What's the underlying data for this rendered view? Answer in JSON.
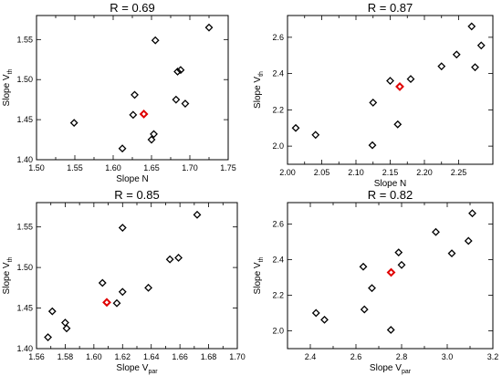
{
  "chart_data": [
    {
      "type": "scatter",
      "title": "R = 0.69",
      "xlabel": "Slope N",
      "ylabel": "Slope V",
      "ylabel_sub": "th",
      "xlim": [
        1.5,
        1.75
      ],
      "ylim": [
        1.4,
        1.58
      ],
      "xticks": [
        "1.50",
        "1.55",
        "1.60",
        "1.65",
        "1.70",
        "1.75"
      ],
      "yticks": [
        "1.40",
        "1.45",
        "1.50",
        "1.55"
      ],
      "points": [
        [
          1.549,
          1.446
        ],
        [
          1.612,
          1.414
        ],
        [
          1.626,
          1.456
        ],
        [
          1.628,
          1.481
        ],
        [
          1.65,
          1.425
        ],
        [
          1.653,
          1.432
        ],
        [
          1.655,
          1.549
        ],
        [
          1.682,
          1.475
        ],
        [
          1.684,
          1.51
        ],
        [
          1.688,
          1.512
        ],
        [
          1.694,
          1.47
        ],
        [
          1.725,
          1.565
        ]
      ],
      "highlight": [
        1.64,
        1.457
      ]
    },
    {
      "type": "scatter",
      "title": "R = 0.87",
      "xlabel": "Slope N",
      "ylabel": "Slope V",
      "ylabel_sub": "th",
      "xlim": [
        2.0,
        2.3
      ],
      "ylim": [
        1.9,
        2.72
      ],
      "xticks": [
        "2.00",
        "2.05",
        "2.10",
        "2.15",
        "2.20",
        "2.25"
      ],
      "yticks": [
        "2.0",
        "2.2",
        "2.4",
        "2.6"
      ],
      "points": [
        [
          2.012,
          2.1
        ],
        [
          2.041,
          2.062
        ],
        [
          2.124,
          2.005
        ],
        [
          2.125,
          2.24
        ],
        [
          2.15,
          2.36
        ],
        [
          2.161,
          2.12
        ],
        [
          2.18,
          2.37
        ],
        [
          2.225,
          2.44
        ],
        [
          2.247,
          2.505
        ],
        [
          2.269,
          2.66
        ],
        [
          2.274,
          2.435
        ],
        [
          2.283,
          2.555
        ]
      ],
      "highlight": [
        2.164,
        2.328
      ]
    },
    {
      "type": "scatter",
      "title": "R = 0.85",
      "xlabel": "Slope V",
      "xlabel_sub": "par",
      "ylabel": "Slope V",
      "ylabel_sub": "th",
      "xlim": [
        1.56,
        1.7
      ],
      "ylim": [
        1.4,
        1.58
      ],
      "xticks": [
        "1.56",
        "1.58",
        "1.60",
        "1.62",
        "1.64",
        "1.66",
        "1.68",
        "1.70"
      ],
      "yticks": [
        "1.40",
        "1.45",
        "1.50",
        "1.55"
      ],
      "points": [
        [
          1.568,
          1.414
        ],
        [
          1.571,
          1.446
        ],
        [
          1.58,
          1.432
        ],
        [
          1.581,
          1.425
        ],
        [
          1.606,
          1.481
        ],
        [
          1.616,
          1.456
        ],
        [
          1.62,
          1.47
        ],
        [
          1.62,
          1.549
        ],
        [
          1.638,
          1.475
        ],
        [
          1.653,
          1.51
        ],
        [
          1.659,
          1.512
        ],
        [
          1.672,
          1.565
        ]
      ],
      "highlight": [
        1.609,
        1.457
      ]
    },
    {
      "type": "scatter",
      "title": "R = 0.82",
      "xlabel": "Slope V",
      "xlabel_sub": "par",
      "ylabel": "Slope V",
      "ylabel_sub": "th",
      "xlim": [
        2.3,
        3.2
      ],
      "ylim": [
        1.9,
        2.72
      ],
      "xticks": [
        "2.4",
        "2.6",
        "2.8",
        "3.0",
        "3.2"
      ],
      "yticks": [
        "2.0",
        "2.2",
        "2.4",
        "2.6"
      ],
      "points": [
        [
          2.425,
          2.1
        ],
        [
          2.462,
          2.062
        ],
        [
          2.632,
          2.36
        ],
        [
          2.637,
          2.12
        ],
        [
          2.67,
          2.24
        ],
        [
          2.753,
          2.005
        ],
        [
          2.787,
          2.44
        ],
        [
          2.8,
          2.37
        ],
        [
          2.95,
          2.555
        ],
        [
          3.02,
          2.435
        ],
        [
          3.093,
          2.505
        ],
        [
          3.11,
          2.66
        ]
      ],
      "highlight": [
        2.754,
        2.328
      ]
    }
  ],
  "colors": {
    "axis": "#000000",
    "marker": "#000000",
    "highlight": "#e00000"
  }
}
